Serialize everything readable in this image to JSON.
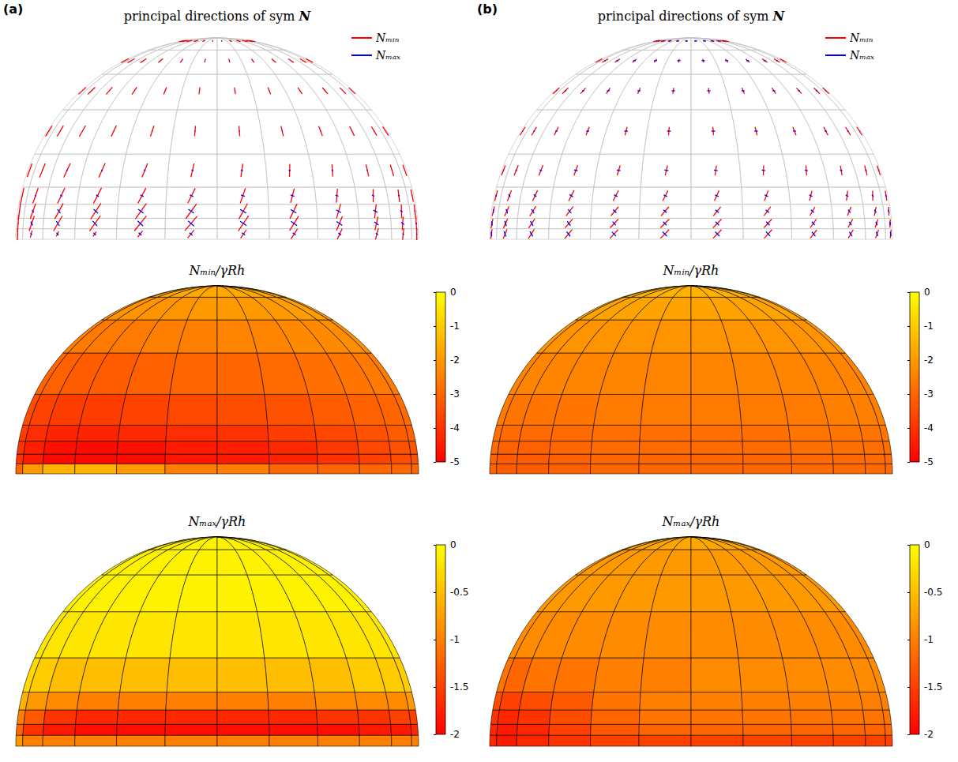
{
  "chart_data": {
    "type": "heatmap",
    "azimuth_edges": [
      180,
      165,
      150,
      135,
      120,
      105,
      90,
      75,
      60,
      45,
      30,
      15,
      0
    ],
    "elevation_edges": [
      0,
      3,
      6,
      10,
      15,
      25,
      40,
      55,
      70,
      90
    ],
    "colormap": [
      "#ff0000",
      "#ffff00"
    ],
    "legend": "upper right",
    "panels": [
      {
        "label": "(a)",
        "directions": {
          "title": "principal directions of sym N",
          "series": [
            {
              "name": "Nₘᵢₙ",
              "color": "#ff0000"
            },
            {
              "name": "Nₘₐₓ",
              "color": "#0000ff"
            }
          ],
          "angles": [
            [
              0,
              -30,
              -35,
              -40,
              -40,
              -40,
              -35,
              -35,
              -30,
              -25,
              -20,
              -10
            ],
            [
              0,
              -35,
              -40,
              -40,
              -40,
              -40,
              -35,
              -35,
              -30,
              -25,
              -20,
              -10
            ],
            [
              0,
              -30,
              -35,
              -35,
              -35,
              -35,
              -30,
              -30,
              -25,
              -20,
              -15,
              -10
            ],
            [
              0,
              -20,
              -25,
              -25,
              -25,
              -25,
              -20,
              -20,
              -15,
              -15,
              -10,
              -5
            ],
            [
              0,
              -10,
              -15,
              -15,
              -15,
              -10,
              -10,
              -10,
              -10,
              -5,
              -5,
              0
            ],
            [
              0,
              0,
              -5,
              -5,
              -5,
              0,
              0,
              0,
              0,
              0,
              0,
              0
            ],
            [
              0,
              0,
              0,
              0,
              0,
              0,
              0,
              0,
              0,
              0,
              0,
              0
            ],
            [
              0,
              0,
              0,
              0,
              0,
              0,
              0,
              0,
              0,
              0,
              0,
              0
            ],
            [
              0,
              0,
              0,
              0,
              0,
              0,
              0,
              0,
              0,
              0,
              0,
              0
            ]
          ]
        },
        "maps": [
          {
            "title": "Nₘᵢₙ/γRh",
            "colorbar_range": [
              -5,
              0
            ],
            "colorbar_ticks": [
              -5,
              -4,
              -3,
              -2,
              -1,
              0
            ],
            "cells": [
              [
                -3,
                -2,
                -1.5,
                -1.5,
                -2,
                -2.5,
                -2.5,
                -3,
                -3,
                -3,
                -3,
                -3
              ],
              [
                -4,
                -4.5,
                -4.8,
                -4.8,
                -4.8,
                -4.6,
                -4.5,
                -4.3,
                -4,
                -3.7,
                -3.5,
                -3.4
              ],
              [
                -4,
                -4.4,
                -4.7,
                -4.8,
                -4.7,
                -4.5,
                -4.4,
                -4.2,
                -3.9,
                -3.6,
                -3.4,
                -3.3
              ],
              [
                -3.8,
                -4.1,
                -4.3,
                -4.3,
                -4.2,
                -4.1,
                -4,
                -3.8,
                -3.6,
                -3.4,
                -3.2,
                -3.1
              ],
              [
                -3.5,
                -3.7,
                -3.8,
                -3.8,
                -3.7,
                -3.6,
                -3.5,
                -3.4,
                -3.2,
                -3.1,
                -3,
                -2.9
              ],
              [
                -3,
                -3.1,
                -3.2,
                -3.2,
                -3.1,
                -3,
                -3,
                -2.9,
                -2.8,
                -2.7,
                -2.6,
                -2.6
              ],
              [
                -2.5,
                -2.6,
                -2.6,
                -2.6,
                -2.5,
                -2.5,
                -2.4,
                -2.4,
                -2.3,
                -2.3,
                -2.2,
                -2.2
              ],
              [
                -2.1,
                -2.1,
                -2.1,
                -2.1,
                -2.1,
                -2,
                -2,
                -2,
                -2,
                -1.9,
                -1.9,
                -1.9
              ],
              [
                -1.7,
                -1.7,
                -1.7,
                -1.7,
                -1.7,
                -1.7,
                -1.7,
                -1.7,
                -1.7,
                -1.7,
                -1.7,
                -1.7
              ]
            ]
          },
          {
            "title": "Nₘₐₓ/γRh",
            "colorbar_range": [
              -2,
              0
            ],
            "colorbar_ticks": [
              -2,
              -1.5,
              -1,
              -0.5,
              0
            ],
            "cells": [
              [
                -0.8,
                -1,
                -1,
                -1,
                -1,
                -1,
                -1,
                -1,
                -1,
                -1,
                -1,
                -1
              ],
              [
                -1.2,
                -1.6,
                -1.8,
                -1.9,
                -1.9,
                -1.9,
                -1.9,
                -1.9,
                -1.9,
                -1.8,
                -1.8,
                -1.7
              ],
              [
                -1,
                -1.3,
                -1.6,
                -1.7,
                -1.7,
                -1.7,
                -1.7,
                -1.7,
                -1.6,
                -1.6,
                -1.5,
                -1.5
              ],
              [
                -0.6,
                -0.8,
                -0.9,
                -1,
                -1,
                -1,
                -1,
                -1,
                -0.9,
                -0.9,
                -0.9,
                -0.8
              ],
              [
                -0.3,
                -0.4,
                -0.5,
                -0.5,
                -0.5,
                -0.5,
                -0.5,
                -0.5,
                -0.5,
                -0.4,
                -0.4,
                -0.4
              ],
              [
                -0.2,
                -0.2,
                -0.2,
                -0.2,
                -0.2,
                -0.2,
                -0.2,
                -0.2,
                -0.2,
                -0.2,
                -0.2,
                -0.2
              ],
              [
                -0.1,
                -0.1,
                -0.1,
                -0.1,
                -0.1,
                -0.1,
                -0.1,
                -0.1,
                -0.1,
                -0.1,
                -0.1,
                -0.1
              ],
              [
                -0.1,
                -0.1,
                -0.1,
                -0.1,
                -0.1,
                -0.1,
                -0.1,
                -0.1,
                -0.1,
                -0.1,
                -0.1,
                -0.1
              ],
              [
                -0.1,
                -0.1,
                -0.1,
                -0.1,
                -0.1,
                -0.1,
                -0.1,
                -0.1,
                -0.1,
                -0.1,
                -0.1,
                -0.1
              ]
            ]
          }
        ]
      },
      {
        "label": "(b)",
        "directions": {
          "title": "principal directions of sym N",
          "series": [
            {
              "name": "Nₘᵢₙ",
              "color": "#ff0000"
            },
            {
              "name": "Nₘₐₓ",
              "color": "#0000ff"
            }
          ],
          "angles": [
            [
              -40,
              -45,
              -45,
              -45,
              -45,
              -45,
              -45,
              -45,
              -45,
              -45,
              -45,
              -45
            ],
            [
              -40,
              -45,
              -45,
              -45,
              -45,
              -45,
              -45,
              -45,
              -45,
              -45,
              -45,
              -45
            ],
            [
              -35,
              -40,
              -40,
              -40,
              -40,
              -40,
              -40,
              -40,
              -40,
              -40,
              -40,
              -40
            ],
            [
              -20,
              -25,
              -25,
              -25,
              -25,
              -25,
              -25,
              -25,
              -25,
              -25,
              -25,
              -25
            ],
            [
              -10,
              -10,
              -10,
              -10,
              -10,
              -10,
              -10,
              -10,
              -10,
              -10,
              -10,
              -10
            ],
            [
              0,
              0,
              0,
              0,
              0,
              0,
              0,
              0,
              0,
              0,
              0,
              0
            ],
            [
              0,
              0,
              0,
              0,
              0,
              0,
              0,
              0,
              0,
              0,
              0,
              0
            ],
            [
              0,
              0,
              0,
              0,
              0,
              0,
              0,
              0,
              0,
              0,
              0,
              0
            ],
            [
              0,
              0,
              0,
              0,
              0,
              0,
              0,
              0,
              0,
              0,
              0,
              0
            ]
          ]
        },
        "maps": [
          {
            "title": "Nₘᵢₙ/γRh",
            "colorbar_range": [
              -5,
              0
            ],
            "colorbar_ticks": [
              -5,
              -4,
              -3,
              -2,
              -1,
              0
            ],
            "cells": [
              [
                -3,
                -3.2,
                -3.2,
                -3.1,
                -3,
                -3,
                -3,
                -3,
                -2.9,
                -2.9,
                -2.9,
                -2.9
              ],
              [
                -3,
                -3.2,
                -3.2,
                -3.1,
                -3,
                -3,
                -3,
                -3,
                -2.9,
                -2.9,
                -2.9,
                -2.9
              ],
              [
                -2.9,
                -3.1,
                -3.1,
                -3,
                -2.9,
                -2.9,
                -2.9,
                -2.9,
                -2.8,
                -2.8,
                -2.8,
                -2.8
              ],
              [
                -2.8,
                -2.9,
                -2.9,
                -2.9,
                -2.8,
                -2.8,
                -2.8,
                -2.8,
                -2.7,
                -2.7,
                -2.7,
                -2.7
              ],
              [
                -2.6,
                -2.7,
                -2.7,
                -2.7,
                -2.6,
                -2.6,
                -2.6,
                -2.6,
                -2.6,
                -2.5,
                -2.5,
                -2.5
              ],
              [
                -2.4,
                -2.4,
                -2.4,
                -2.4,
                -2.4,
                -2.4,
                -2.4,
                -2.4,
                -2.4,
                -2.4,
                -2.4,
                -2.4
              ],
              [
                -2.1,
                -2.1,
                -2.1,
                -2.1,
                -2.1,
                -2.1,
                -2.1,
                -2.1,
                -2.1,
                -2.1,
                -2.1,
                -2.1
              ],
              [
                -1.8,
                -1.8,
                -1.8,
                -1.8,
                -1.8,
                -1.8,
                -1.8,
                -1.8,
                -1.8,
                -1.8,
                -1.8,
                -1.8
              ],
              [
                -1.5,
                -1.5,
                -1.5,
                -1.5,
                -1.5,
                -1.5,
                -1.5,
                -1.5,
                -1.5,
                -1.5,
                -1.5,
                -1.5
              ]
            ]
          },
          {
            "title": "Nₘₐₓ/γRh",
            "colorbar_range": [
              -2,
              0
            ],
            "colorbar_ticks": [
              -2,
              -1.5,
              -1,
              -0.5,
              0
            ],
            "cells": [
              [
                -1.7,
                -1.8,
                -1.7,
                -1.6,
                -1.5,
                -1.5,
                -1.5,
                -1.5,
                -1.5,
                -1.5,
                -1.5,
                -1.5
              ],
              [
                -1.7,
                -1.8,
                -1.7,
                -1.5,
                -1.3,
                -1.2,
                -1.2,
                -1.2,
                -1.2,
                -1.2,
                -1.2,
                -1.2
              ],
              [
                -1.6,
                -1.7,
                -1.6,
                -1.4,
                -1.2,
                -1.1,
                -1.1,
                -1.1,
                -1.1,
                -1.1,
                -1.1,
                -1.1
              ],
              [
                -1.4,
                -1.5,
                -1.4,
                -1.3,
                -1.1,
                -1,
                -1,
                -1,
                -1,
                -1,
                -1,
                -1
              ],
              [
                -1.1,
                -1.2,
                -1.1,
                -1.1,
                -1,
                -1,
                -0.9,
                -0.9,
                -0.9,
                -0.9,
                -0.9,
                -0.9
              ],
              [
                -0.9,
                -0.9,
                -0.9,
                -0.9,
                -0.9,
                -0.9,
                -0.9,
                -0.9,
                -0.9,
                -0.9,
                -0.9,
                -0.9
              ],
              [
                -0.8,
                -0.8,
                -0.8,
                -0.8,
                -0.8,
                -0.8,
                -0.8,
                -0.8,
                -0.8,
                -0.8,
                -0.8,
                -0.8
              ],
              [
                -0.8,
                -0.8,
                -0.8,
                -0.8,
                -0.8,
                -0.8,
                -0.8,
                -0.8,
                -0.8,
                -0.8,
                -0.8,
                -0.8
              ],
              [
                -0.7,
                -0.7,
                -0.7,
                -0.7,
                -0.7,
                -0.7,
                -0.7,
                -0.7,
                -0.7,
                -0.7,
                -0.7,
                -0.7
              ]
            ]
          }
        ]
      }
    ]
  }
}
